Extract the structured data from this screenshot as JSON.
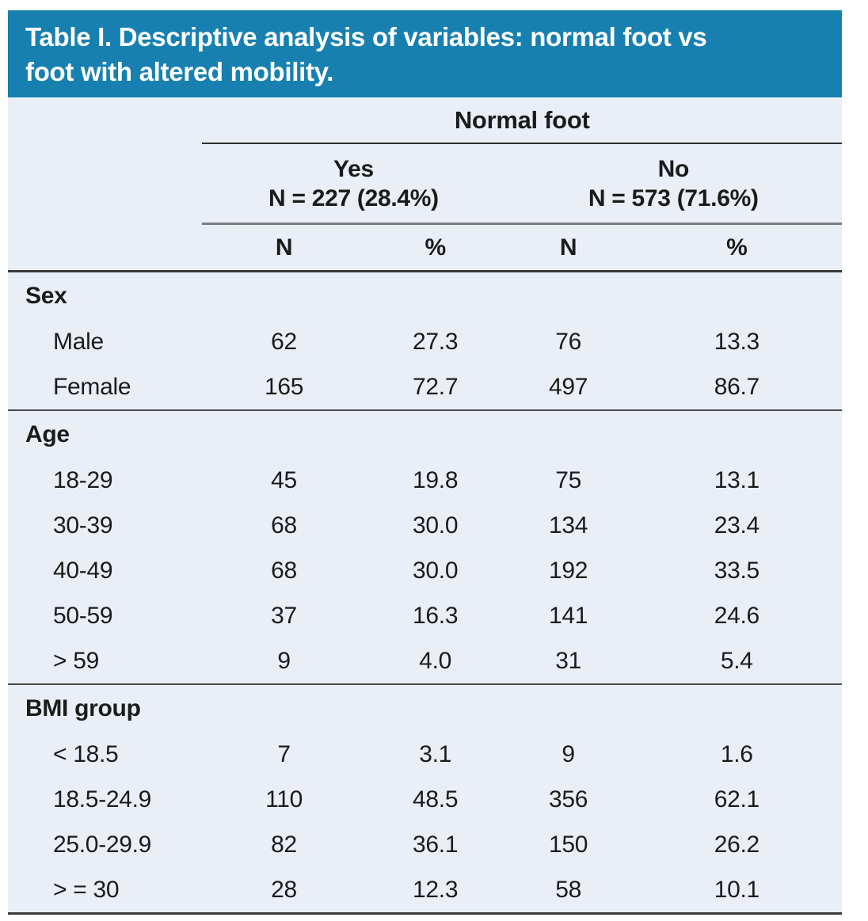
{
  "title": {
    "lines": [
      "Table I. Descriptive analysis of variables: normal foot vs",
      "foot with altered mobility."
    ]
  },
  "colors": {
    "banner": "#1780B0",
    "title_text": "#FFFFFF",
    "body_bg": "#EAEEF7",
    "text": "#1B1B1B",
    "rule_dark": "#3A3A3A",
    "rule_medium": "#4A4A4A",
    "rule_gray": "#7A7E81"
  },
  "table": {
    "group_header": "Normal foot",
    "groups": [
      {
        "label": "Yes",
        "sublabel": "N = 227 (28.4%)"
      },
      {
        "label": "No",
        "sublabel": "N = 573 (71.6%)"
      }
    ],
    "columns": [
      "N",
      "%",
      "N",
      "%"
    ],
    "sections": [
      {
        "label": "Sex",
        "rows": [
          {
            "label": "Male",
            "values": [
              "62",
              "27.3",
              "76",
              "13.3"
            ]
          },
          {
            "label": "Female",
            "values": [
              "165",
              "72.7",
              "497",
              "86.7"
            ]
          }
        ]
      },
      {
        "label": "Age",
        "rows": [
          {
            "label": "18-29",
            "values": [
              "45",
              "19.8",
              "75",
              "13.1"
            ]
          },
          {
            "label": "30-39",
            "values": [
              "68",
              "30.0",
              "134",
              "23.4"
            ]
          },
          {
            "label": "40-49",
            "values": [
              "68",
              "30.0",
              "192",
              "33.5"
            ]
          },
          {
            "label": "50-59",
            "values": [
              "37",
              "16.3",
              "141",
              "24.6"
            ]
          },
          {
            "label": "> 59",
            "values": [
              "9",
              "4.0",
              "31",
              "5.4"
            ]
          }
        ]
      },
      {
        "label": "BMI group",
        "rows": [
          {
            "label": "< 18.5",
            "values": [
              "7",
              "3.1",
              "9",
              "1.6"
            ]
          },
          {
            "label": "18.5-24.9",
            "values": [
              "110",
              "48.5",
              "356",
              "62.1"
            ]
          },
          {
            "label": "25.0-29.9",
            "values": [
              "82",
              "36.1",
              "150",
              "26.2"
            ]
          },
          {
            "label": "> = 30",
            "values": [
              "28",
              "12.3",
              "58",
              "10.1"
            ]
          }
        ]
      }
    ]
  }
}
